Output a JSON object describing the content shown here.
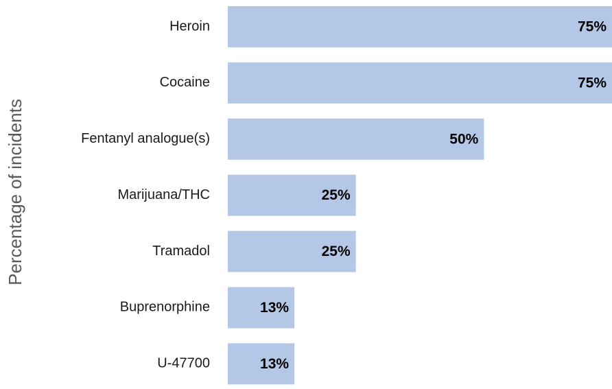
{
  "chart_data": {
    "type": "barh",
    "y_label": "Percentage of incidents",
    "categories": [
      "Heroin",
      "Cocaine",
      "Fentanyl analogue(s)",
      "Marijuana/THC",
      "Tramadol",
      "Buprenorphine",
      "U-47700"
    ],
    "values": [
      75,
      75,
      50,
      25,
      25,
      13,
      13
    ],
    "value_labels": [
      "75%",
      "75%",
      "50%",
      "25%",
      "25%",
      "13%",
      "13%"
    ],
    "color": "#b4c7e7",
    "xlim": [
      0,
      75
    ]
  }
}
